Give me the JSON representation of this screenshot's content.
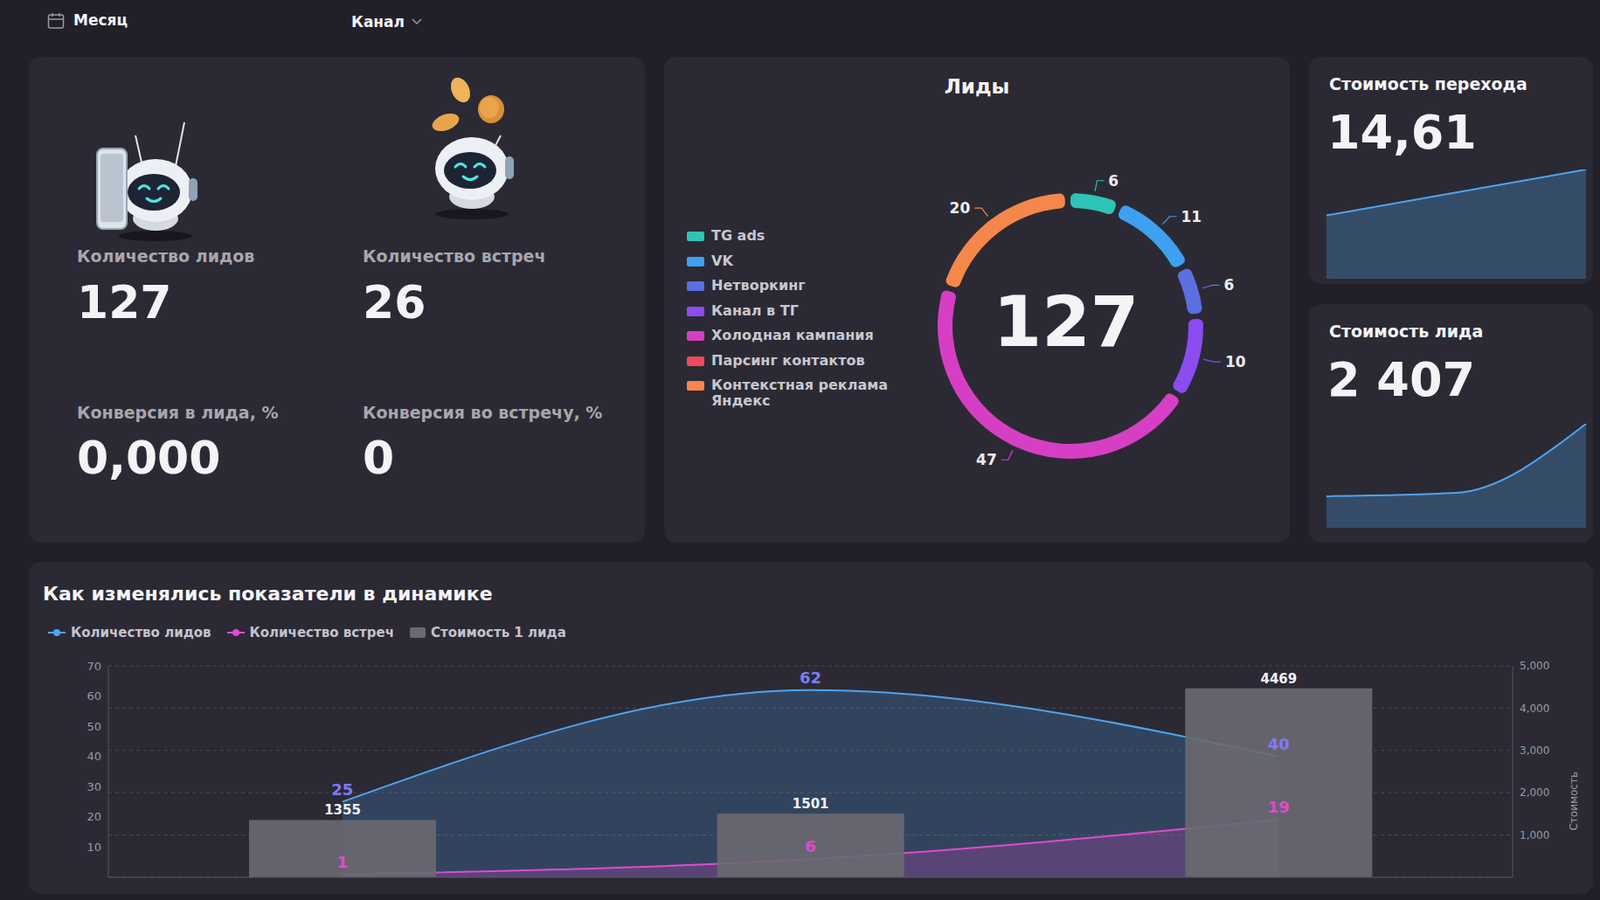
{
  "header": {
    "filters": [
      "Месяц",
      "Канал"
    ]
  },
  "kpis": [
    {
      "label": "Количество лидов",
      "value": "127"
    },
    {
      "label": "Количество встреч",
      "value": "26"
    },
    {
      "label": "Конверсия в лида, %",
      "value": "0,000"
    },
    {
      "label": "Конверсия во встречу, %",
      "value": "0"
    }
  ],
  "chart_data": [
    {
      "type": "pie",
      "title": "Лиды",
      "annotations": [
        "127"
      ],
      "categories": [
        "TG ads",
        "VK",
        "Нетворкинг",
        "Канал в ТГ",
        "Холодная кампания",
        "Парсинг контактов",
        "Контекстная реклама Яндекс"
      ],
      "values": [
        6,
        11,
        6,
        10,
        47,
        null,
        20
      ],
      "colors": [
        "#2ec4b6",
        "#3ea0f0",
        "#5b6fe0",
        "#8b4cf0",
        "#d63fc3",
        "#f0485e",
        "#f5874a"
      ],
      "data_labels": true,
      "legend": "left"
    },
    {
      "type": "area",
      "title": "Стоимость перехода",
      "subtitle": "14,61",
      "categories": [
        null,
        null,
        null
      ],
      "values": [
        58,
        79,
        100
      ],
      "ylim": [
        0,
        100
      ],
      "color": "#4ea4f0",
      "tick_labels": false
    },
    {
      "type": "area",
      "title": "Стоимость лида",
      "subtitle": "2 407",
      "categories": [
        null,
        null,
        null
      ],
      "values": [
        1355,
        1501,
        4469
      ],
      "ylim": [
        0,
        4469
      ],
      "color": "#4ea4f0",
      "tick_labels": false
    },
    {
      "type": "bar",
      "title": "Как изменялись показатели в динамике",
      "categories": [
        null,
        null,
        null
      ],
      "series": [
        {
          "name": "Количество лидов",
          "type": "area",
          "color": "#4ea4f0",
          "values": [
            25,
            62,
            40
          ]
        },
        {
          "name": "Количество встреч",
          "type": "area",
          "color": "#e04bd0",
          "values": [
            1,
            6,
            19
          ]
        },
        {
          "name": "Стоимость 1 лида",
          "type": "bar",
          "color": "#6a6971",
          "axis": "y2",
          "values": [
            1355,
            1501,
            4469
          ]
        }
      ],
      "ylim": [
        0,
        70
      ],
      "yticks": [
        10,
        20,
        30,
        40,
        50,
        60,
        70
      ],
      "y2lim": [
        0,
        5000
      ],
      "y2ticks": [
        {
          "value": 1000,
          "label": "1,000"
        },
        {
          "value": 2000,
          "label": "2,000"
        },
        {
          "value": 3000,
          "label": "3,000"
        },
        {
          "value": 4000,
          "label": "4,000"
        },
        {
          "value": 5000,
          "label": "5,000"
        }
      ],
      "y2label": "Стоимость",
      "grid": true,
      "data_labels": true,
      "legend": "top"
    }
  ]
}
